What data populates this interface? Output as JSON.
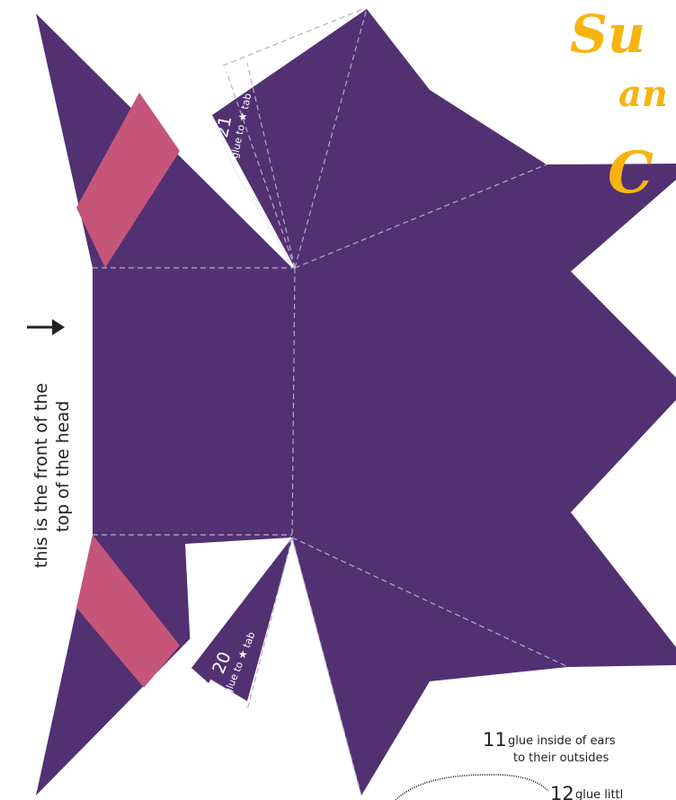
{
  "colors": {
    "paper": "#523172",
    "stripe": "#c6557a",
    "fold_line": "#b9a8cc",
    "title": "#f7b410",
    "text": "#222222",
    "tab_text": "#ffffff"
  },
  "title_fragment": {
    "line1": "Su",
    "line2": "an",
    "line3": "C"
  },
  "side_note": {
    "line1": "this is the front of the",
    "line2": "top of the head",
    "arrow_icon": "right-arrow"
  },
  "tabs": [
    {
      "number": "21",
      "text": "glue to",
      "star_icon": "star",
      "suffix": "tab"
    },
    {
      "number": "20",
      "text": "glue to",
      "star_icon": "star",
      "suffix": "tab"
    }
  ],
  "steps": [
    {
      "number": "11",
      "line1": "glue inside of ears",
      "line2": "to their outsides"
    },
    {
      "number": "12",
      "line1": "glue littl",
      "line2": ""
    }
  ]
}
